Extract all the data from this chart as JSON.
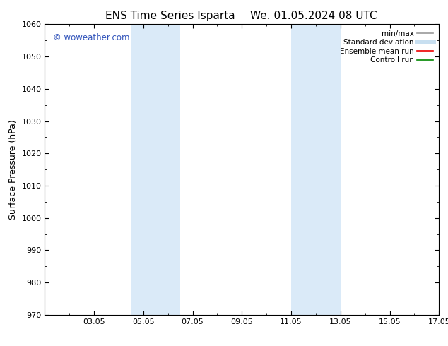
{
  "title_left": "ENS Time Series Isparta",
  "title_right": "We. 01.05.2024 08 UTC",
  "ylabel": "Surface Pressure (hPa)",
  "ylim": [
    970,
    1060
  ],
  "yticks": [
    970,
    980,
    990,
    1000,
    1010,
    1020,
    1030,
    1040,
    1050,
    1060
  ],
  "xlim": [
    1.0,
    17.0
  ],
  "xtick_labels": [
    "03.05",
    "05.05",
    "07.05",
    "09.05",
    "11.05",
    "13.05",
    "15.05",
    "17.05"
  ],
  "xtick_positions": [
    3,
    5,
    7,
    9,
    11,
    13,
    15,
    17
  ],
  "background_color": "#ffffff",
  "shaded_bands": [
    {
      "x_start": 4.5,
      "x_end": 5.5,
      "color": "#daeaf8"
    },
    {
      "x_start": 5.5,
      "x_end": 6.5,
      "color": "#daeaf8"
    },
    {
      "x_start": 11.0,
      "x_end": 12.0,
      "color": "#daeaf8"
    },
    {
      "x_start": 12.0,
      "x_end": 13.0,
      "color": "#daeaf8"
    }
  ],
  "watermark_text": "© woweather.com",
  "watermark_color": "#3355bb",
  "legend_items": [
    {
      "label": "min/max",
      "color": "#999999",
      "lw": 1.2,
      "style": "solid"
    },
    {
      "label": "Standard deviation",
      "color": "#c8dff0",
      "lw": 5,
      "style": "solid"
    },
    {
      "label": "Ensemble mean run",
      "color": "#ee0000",
      "lw": 1.2,
      "style": "solid"
    },
    {
      "label": "Controll run",
      "color": "#008800",
      "lw": 1.2,
      "style": "solid"
    }
  ],
  "title_fontsize": 11,
  "axis_label_fontsize": 9,
  "tick_fontsize": 8,
  "legend_fontsize": 7.5,
  "watermark_fontsize": 8.5,
  "fig_bg": "#ffffff"
}
